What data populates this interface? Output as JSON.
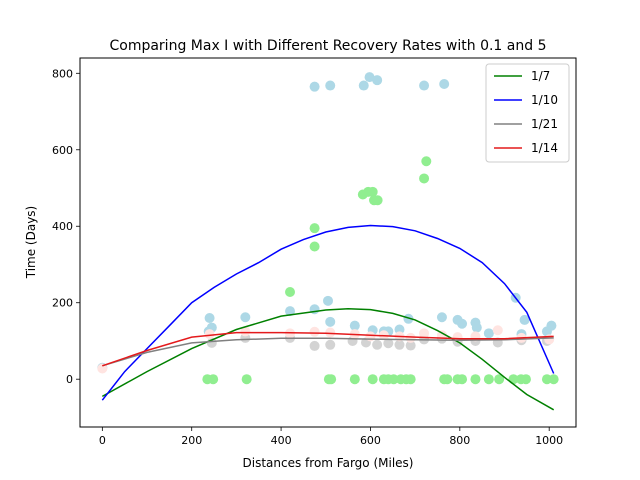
{
  "chart_data": {
    "type": "scatter",
    "title": "Comparing Max I with Different Recovery Rates with 0.1 and 5",
    "xlabel": "Distances from Fargo (Miles)",
    "ylabel": "Time (Days)",
    "xlim": [
      -50,
      1060
    ],
    "ylim": [
      -125,
      840
    ],
    "xticks": [
      0,
      200,
      400,
      600,
      800,
      1000
    ],
    "yticks": [
      0,
      200,
      400,
      600,
      800
    ],
    "legend_position": "upper right",
    "grid": false,
    "scatter_series": [
      {
        "color": "#add8e6",
        "points": [
          [
            0,
            30
          ],
          [
            240,
            160
          ],
          [
            245,
            135
          ],
          [
            238,
            125
          ],
          [
            320,
            162
          ],
          [
            420,
            178
          ],
          [
            475,
            183
          ],
          [
            475,
            765
          ],
          [
            505,
            205
          ],
          [
            510,
            150
          ],
          [
            510,
            768
          ],
          [
            565,
            140
          ],
          [
            585,
            768
          ],
          [
            598,
            790
          ],
          [
            605,
            128
          ],
          [
            615,
            782
          ],
          [
            630,
            125
          ],
          [
            640,
            125
          ],
          [
            665,
            130
          ],
          [
            685,
            158
          ],
          [
            720,
            768
          ],
          [
            760,
            162
          ],
          [
            765,
            772
          ],
          [
            795,
            155
          ],
          [
            805,
            145
          ],
          [
            835,
            148
          ],
          [
            838,
            135
          ],
          [
            865,
            120
          ],
          [
            925,
            213
          ],
          [
            938,
            118
          ],
          [
            945,
            155
          ],
          [
            995,
            125
          ],
          [
            1005,
            140
          ]
        ]
      },
      {
        "color": "#90ee90",
        "points": [
          [
            235,
            0
          ],
          [
            248,
            0
          ],
          [
            323,
            0
          ],
          [
            420,
            228
          ],
          [
            475,
            395
          ],
          [
            475,
            347
          ],
          [
            507,
            0
          ],
          [
            512,
            0
          ],
          [
            565,
            0
          ],
          [
            583,
            483
          ],
          [
            595,
            490
          ],
          [
            605,
            490
          ],
          [
            608,
            468
          ],
          [
            616,
            468
          ],
          [
            605,
            0
          ],
          [
            630,
            0
          ],
          [
            640,
            0
          ],
          [
            652,
            0
          ],
          [
            668,
            0
          ],
          [
            680,
            0
          ],
          [
            690,
            0
          ],
          [
            720,
            525
          ],
          [
            725,
            570
          ],
          [
            765,
            0
          ],
          [
            772,
            0
          ],
          [
            795,
            0
          ],
          [
            805,
            0
          ],
          [
            835,
            0
          ],
          [
            865,
            0
          ],
          [
            888,
            0
          ],
          [
            920,
            0
          ],
          [
            937,
            0
          ],
          [
            948,
            0
          ],
          [
            995,
            0
          ],
          [
            1010,
            0
          ]
        ]
      },
      {
        "color": "#d3d3d3",
        "points": [
          [
            245,
            95
          ],
          [
            320,
            108
          ],
          [
            420,
            108
          ],
          [
            475,
            87
          ],
          [
            510,
            90
          ],
          [
            560,
            100
          ],
          [
            590,
            96
          ],
          [
            615,
            90
          ],
          [
            640,
            94
          ],
          [
            665,
            90
          ],
          [
            690,
            88
          ],
          [
            720,
            104
          ],
          [
            760,
            106
          ],
          [
            795,
            98
          ],
          [
            835,
            100
          ],
          [
            885,
            96
          ],
          [
            938,
            102
          ],
          [
            995,
            100
          ]
        ]
      },
      {
        "color": "#ffe4e1",
        "points": [
          [
            0,
            28
          ],
          [
            240,
            118
          ],
          [
            320,
            125
          ],
          [
            420,
            120
          ],
          [
            475,
            124
          ],
          [
            510,
            122
          ],
          [
            565,
            118
          ],
          [
            600,
            112
          ],
          [
            630,
            115
          ],
          [
            665,
            112
          ],
          [
            690,
            108
          ],
          [
            720,
            120
          ],
          [
            760,
            115
          ],
          [
            795,
            110
          ],
          [
            835,
            112
          ],
          [
            885,
            128
          ],
          [
            938,
            108
          ],
          [
            1000,
            104
          ]
        ]
      }
    ],
    "series": [
      {
        "name": "1/7",
        "color": "#008000",
        "x": [
          0,
          100,
          200,
          300,
          400,
          500,
          550,
          600,
          650,
          700,
          750,
          800,
          850,
          900,
          950,
          1010
        ],
        "y": [
          -45,
          20,
          80,
          130,
          165,
          181,
          184,
          182,
          172,
          155,
          127,
          95,
          52,
          5,
          -40,
          -80
        ]
      },
      {
        "name": "1/10",
        "color": "#0000ff",
        "x": [
          0,
          50,
          100,
          150,
          200,
          250,
          300,
          350,
          400,
          450,
          500,
          550,
          600,
          650,
          700,
          750,
          800,
          850,
          900,
          950,
          1010
        ],
        "y": [
          -55,
          20,
          80,
          140,
          200,
          240,
          275,
          305,
          340,
          365,
          385,
          397,
          402,
          399,
          388,
          368,
          342,
          305,
          250,
          175,
          15
        ]
      },
      {
        "name": "1/21",
        "color": "#808080",
        "x": [
          0,
          100,
          200,
          300,
          400,
          500,
          600,
          700,
          800,
          900,
          1010
        ],
        "y": [
          35,
          70,
          95,
          103,
          107,
          107,
          105,
          103,
          102,
          103,
          108
        ]
      },
      {
        "name": "1/14",
        "color": "#e41a1c",
        "x": [
          0,
          100,
          200,
          300,
          400,
          500,
          600,
          700,
          800,
          900,
          1010
        ],
        "y": [
          35,
          75,
          110,
          122,
          122,
          120,
          115,
          110,
          106,
          106,
          112
        ]
      }
    ]
  }
}
